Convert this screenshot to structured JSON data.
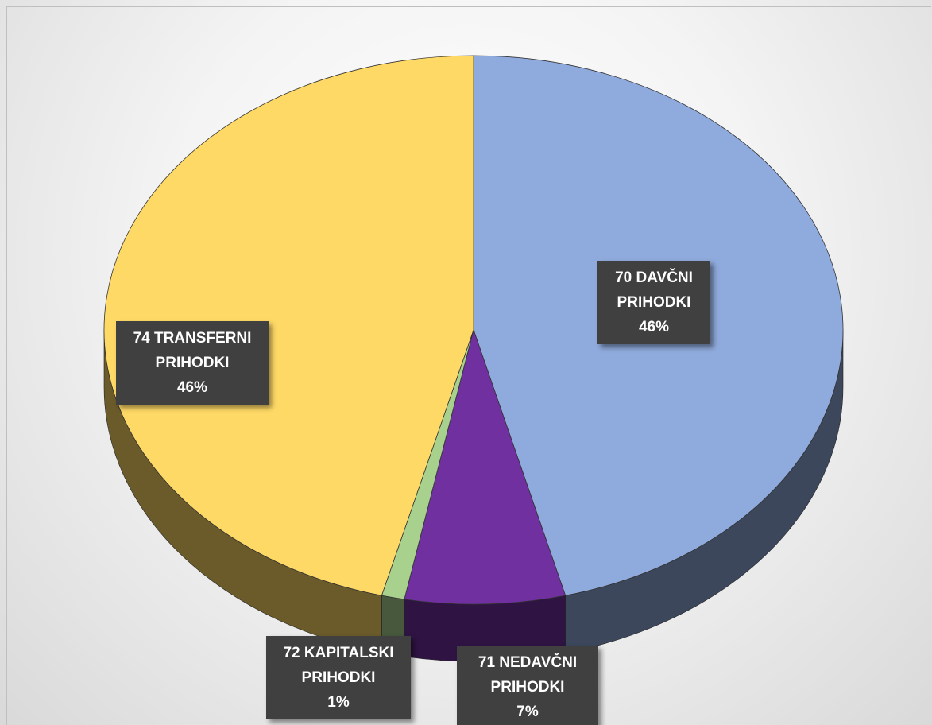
{
  "chart_data": {
    "type": "pie",
    "categories": [
      "70 DAVČNI PRIHODKI",
      "71 NEDAVČNI PRIHODKI",
      "72 KAPITALSKI PRIHODKI",
      "74 TRANSFERNI PRIHODKI"
    ],
    "values": [
      46,
      7,
      1,
      46
    ],
    "value_labels": [
      "46%",
      "7%",
      "1%",
      "46%"
    ],
    "colors": [
      "#8faadc",
      "#7030a0",
      "#a9d18e",
      "#ffd966"
    ]
  }
}
